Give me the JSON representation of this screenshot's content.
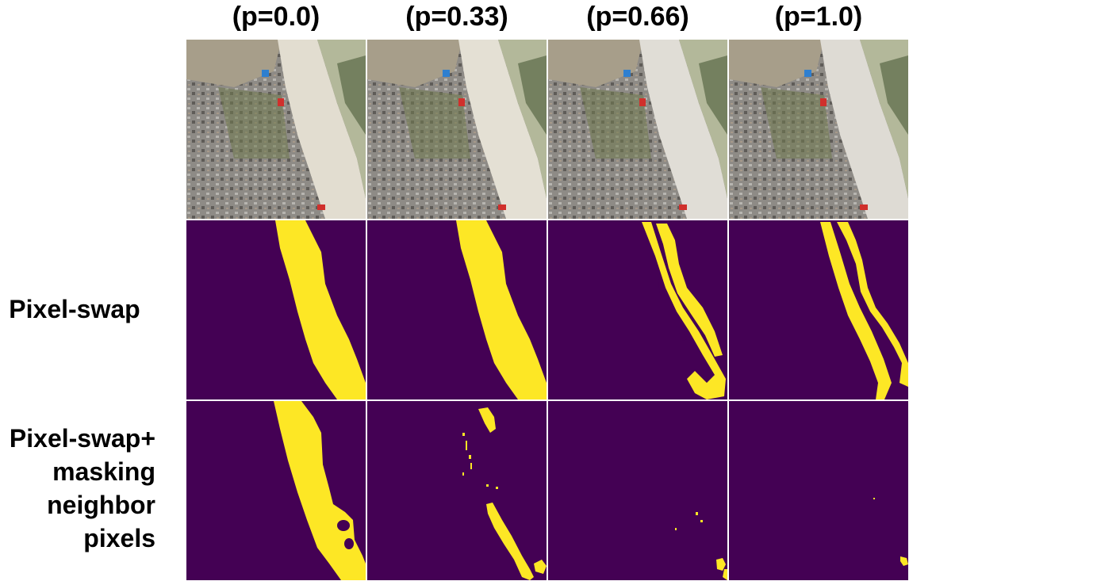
{
  "columns": [
    {
      "label": "(p=0.0)"
    },
    {
      "label": "(p=0.33)"
    },
    {
      "label": "(p=0.66)"
    },
    {
      "label": "(p=1.0)"
    }
  ],
  "rows": [
    {
      "label_lines": []
    },
    {
      "label_lines": [
        "Pixel-swap"
      ]
    },
    {
      "label_lines": [
        "Pixel-swap+",
        "masking",
        "neighbor",
        "pixels"
      ]
    }
  ],
  "colors": {
    "mask_background": "#440154",
    "mask_foreground": "#fde725",
    "sand": "#e2ddd0",
    "vegetation": "#6f7a4e",
    "town": "#8e8b86",
    "roof_blue": "#2e7fd0",
    "roof_red": "#d0302c"
  }
}
